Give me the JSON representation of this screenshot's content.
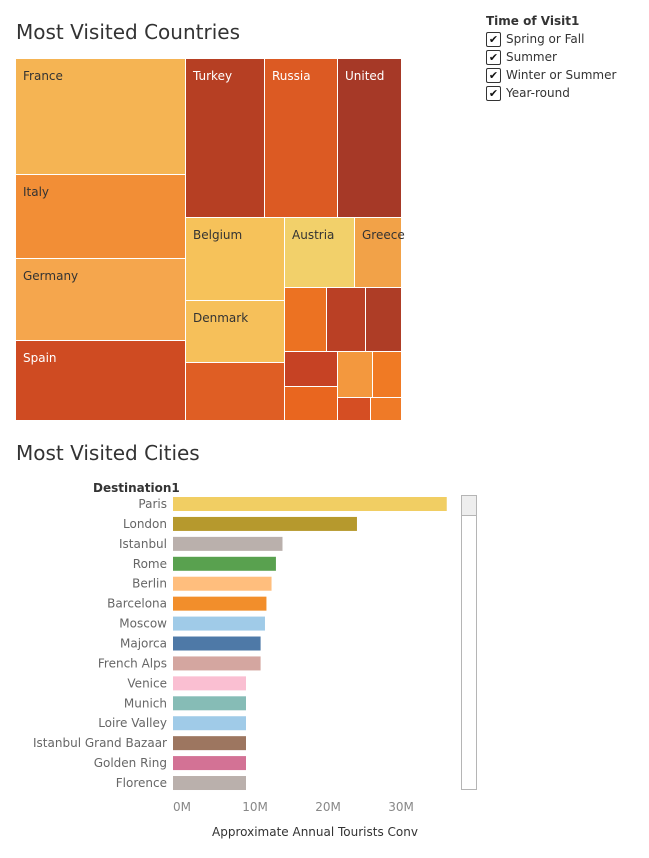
{
  "treemap": {
    "title": "Most Visited Countries",
    "cells": [
      {
        "label": "France",
        "color": "#F5B453",
        "text_color": "#333333"
      },
      {
        "label": "Italy",
        "color": "#F28E36",
        "text_color": "#333333"
      },
      {
        "label": "Germany",
        "color": "#F5A64D",
        "text_color": "#333333"
      },
      {
        "label": "Spain",
        "color": "#CF4B22",
        "text_color": "#ffffff"
      },
      {
        "label": "Turkey",
        "color": "#B63F23",
        "text_color": "#ffffff"
      },
      {
        "label": "Russia",
        "color": "#DC5A23",
        "text_color": "#ffffff"
      },
      {
        "label": "United",
        "color": "#A63927",
        "text_color": "#ffffff"
      },
      {
        "label": "Belgium",
        "color": "#F6C25A",
        "text_color": "#333333"
      },
      {
        "label": "Austria",
        "color": "#F2D06A",
        "text_color": "#333333"
      },
      {
        "label": "Greece",
        "color": "#F2A248",
        "text_color": "#333333"
      },
      {
        "label": "Denmark",
        "color": "#F6C05A",
        "text_color": "#333333"
      },
      {
        "label": "",
        "color": "#DF5E24",
        "text_color": "#ffffff"
      },
      {
        "label": "",
        "color": "#EC7222",
        "text_color": "#ffffff"
      },
      {
        "label": "",
        "color": "#BA4025",
        "text_color": "#ffffff"
      },
      {
        "label": "",
        "color": "#AE3D26",
        "text_color": "#ffffff"
      },
      {
        "label": "",
        "color": "#C64224",
        "text_color": "#ffffff"
      },
      {
        "label": "",
        "color": "#F3983E",
        "text_color": "#ffffff"
      },
      {
        "label": "",
        "color": "#F07A24",
        "text_color": "#ffffff"
      },
      {
        "label": "",
        "color": "#E9661F",
        "text_color": "#ffffff"
      },
      {
        "label": "",
        "color": "#D54E23",
        "text_color": "#ffffff"
      },
      {
        "label": "",
        "color": "#EF7A27",
        "text_color": "#ffffff"
      }
    ]
  },
  "legend": {
    "title": "Time of Visit1",
    "check_glyph": "✔",
    "items": [
      {
        "label": "Spring or Fall",
        "checked": true
      },
      {
        "label": "Summer",
        "checked": true
      },
      {
        "label": "Winter or Summer",
        "checked": true
      },
      {
        "label": "Year-round",
        "checked": true
      }
    ]
  },
  "barchart": {
    "title": "Most Visited Cities",
    "row_header": "Destination1"
  },
  "chart_data": [
    {
      "type": "treemap",
      "title": "Most Visited Countries",
      "labels": [
        "France",
        "Italy",
        "Germany",
        "Spain",
        "Turkey",
        "Russia",
        "United",
        "Belgium",
        "Austria",
        "Greece",
        "Denmark"
      ]
    },
    {
      "type": "bar",
      "orientation": "horizontal",
      "title": "Most Visited Cities",
      "row_header": "Destination1",
      "xlabel": "Approximate Annual Tourists Conv",
      "xlim": [
        0,
        40000000
      ],
      "ticks": [
        0,
        10000000,
        20000000,
        30000000
      ],
      "tick_labels": [
        "0M",
        "10M",
        "20M",
        "30M"
      ],
      "categories": [
        "Paris",
        "London",
        "Istanbul",
        "Rome",
        "Berlin",
        "Barcelona",
        "Moscow",
        "Majorca",
        "French Alps",
        "Venice",
        "Munich",
        "Loire Valley",
        "Istanbul Grand Bazaar",
        "Golden Ring",
        "Florence"
      ],
      "values": [
        37500000,
        25200000,
        15000000,
        14100000,
        13500000,
        12800000,
        12600000,
        12000000,
        12000000,
        10000000,
        10000000,
        10000000,
        10000000,
        10000000,
        10000000
      ],
      "colors": [
        "#F1CE63",
        "#B6992D",
        "#BAB0AC",
        "#59A14F",
        "#FFBE7D",
        "#F28E2B",
        "#A0CBE8",
        "#4E79A7",
        "#D4A6A0",
        "#FABFD2",
        "#86BCB6",
        "#A0CBE8",
        "#9D7660",
        "#D37295",
        "#BAB0AC"
      ],
      "grid": false,
      "legend": "none"
    }
  ]
}
